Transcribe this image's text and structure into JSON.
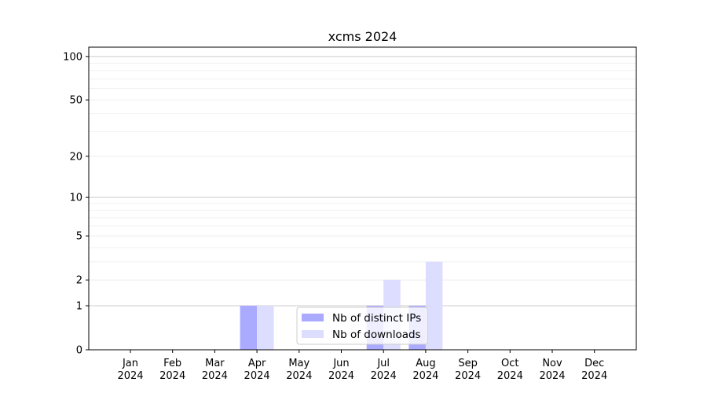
{
  "chart_data": {
    "type": "bar",
    "title": "xcms 2024",
    "xlabel": "",
    "ylabel": "",
    "y_scale": "log(1+y)",
    "ylim": [
      0,
      116
    ],
    "y_ticks": [
      0,
      1,
      2,
      5,
      10,
      20,
      50,
      100
    ],
    "y_tick_labels": [
      "0",
      "1",
      "2",
      "5",
      "10",
      "20",
      "50",
      "100"
    ],
    "grid": true,
    "legend_position": "lower-center",
    "categories": [
      "Jan\n2024",
      "Feb\n2024",
      "Mar\n2024",
      "Apr\n2024",
      "May\n2024",
      "Jun\n2024",
      "Jul\n2024",
      "Aug\n2024",
      "Sep\n2024",
      "Oct\n2024",
      "Nov\n2024",
      "Dec\n2024"
    ],
    "month_labels": [
      "Jan",
      "Feb",
      "Mar",
      "Apr",
      "May",
      "Jun",
      "Jul",
      "Aug",
      "Sep",
      "Oct",
      "Nov",
      "Dec"
    ],
    "year_label": "2024",
    "series": [
      {
        "name": "Nb of distinct IPs",
        "color": "#aaaaff",
        "values": [
          0,
          0,
          0,
          1,
          0,
          0,
          1,
          1,
          0,
          0,
          0,
          0
        ]
      },
      {
        "name": "Nb of downloads",
        "color": "#ddddff",
        "values": [
          0,
          0,
          0,
          1,
          0,
          0,
          2,
          3,
          0,
          0,
          0,
          0
        ]
      }
    ]
  }
}
